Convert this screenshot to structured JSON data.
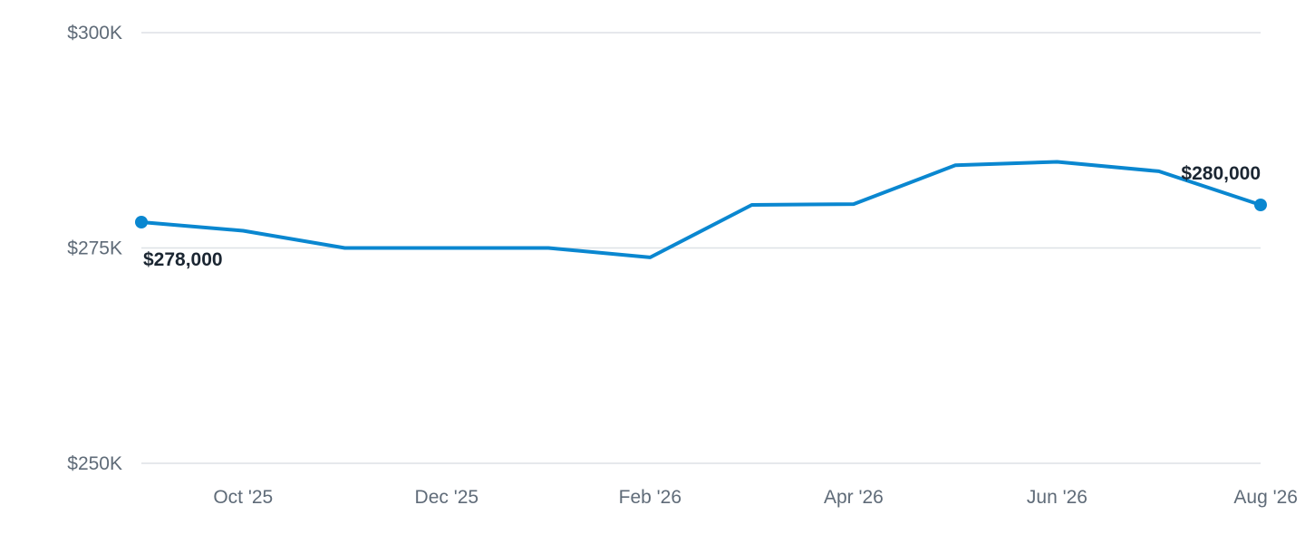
{
  "chart_data": {
    "type": "line",
    "title": "",
    "xlabel": "",
    "ylabel": "",
    "x": [
      "2025-09",
      "2025-10",
      "2025-11",
      "2025-12",
      "2026-01",
      "2026-02",
      "2026-03",
      "2026-04",
      "2026-05",
      "2026-06",
      "2026-07",
      "2026-08"
    ],
    "x_tick_labels": [
      {
        "x": "2025-10",
        "label": "Oct '25"
      },
      {
        "x": "2025-12",
        "label": "Dec '25"
      },
      {
        "x": "2026-02",
        "label": "Feb '26"
      },
      {
        "x": "2026-04",
        "label": "Apr '26"
      },
      {
        "x": "2026-06",
        "label": "Jun '26"
      },
      {
        "x": "2026-08",
        "label": "Aug '26"
      }
    ],
    "y_tick_labels": [
      {
        "value": 300000,
        "label": "$300K"
      },
      {
        "value": 275000,
        "label": "$275K"
      },
      {
        "value": 250000,
        "label": "$250K"
      }
    ],
    "ylim": [
      250000,
      300000
    ],
    "grid": true,
    "series": [
      {
        "values": [
          278000,
          277000,
          275000,
          275000,
          275000,
          273900,
          280000,
          280100,
          284600,
          285000,
          283900,
          280000
        ],
        "color": "#0a87d0"
      }
    ],
    "data_labels": [
      {
        "index": 0,
        "label": "$278,000"
      },
      {
        "index": 11,
        "label": "$280,000"
      }
    ]
  }
}
